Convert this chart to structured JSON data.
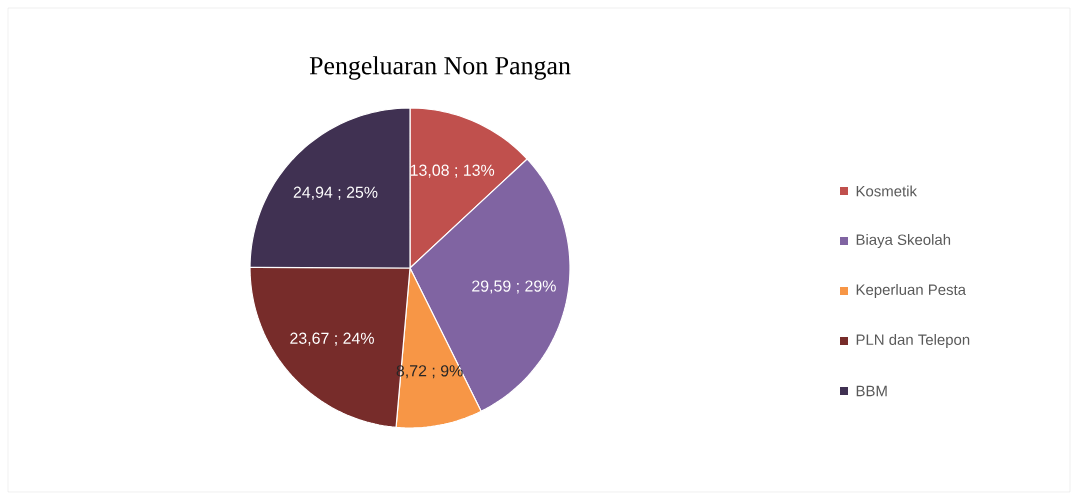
{
  "chart_data": {
    "type": "pie",
    "title": "Pengeluaran Non Pangan",
    "categories": [
      "Kosmetik",
      "Biaya Skeolah",
      "Keperluan Pesta",
      "PLN dan Telepon",
      "BBM"
    ],
    "values": [
      13.08,
      29.59,
      8.72,
      23.67,
      24.94
    ],
    "colors": [
      "#c0504d",
      "#8064a2",
      "#f79646",
      "#772c2a",
      "#403152"
    ],
    "value_labels": [
      "13,08 ; 13%",
      "29,59 ; 29%",
      "8,72 ; 9%",
      "23,67 ; 24%",
      "24,94 ; 25%"
    ],
    "legend": "right"
  }
}
